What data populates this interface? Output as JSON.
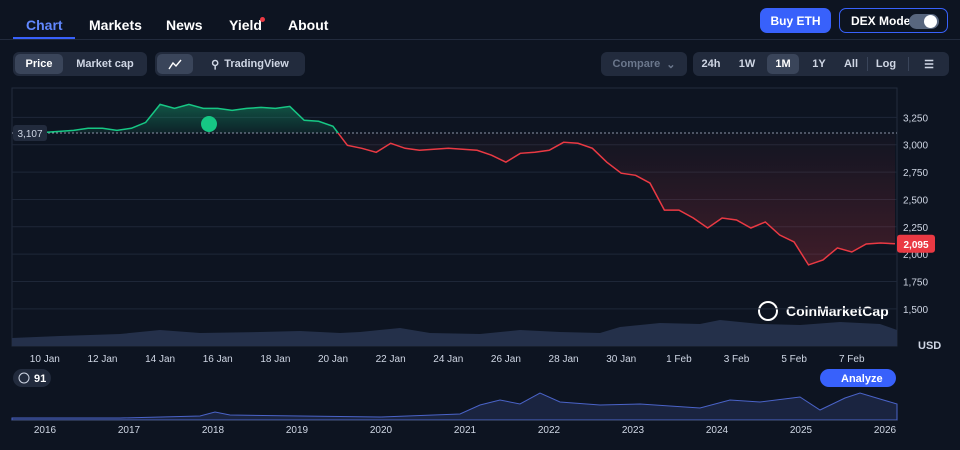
{
  "nav": {
    "tabs": [
      "Chart",
      "Markets",
      "News",
      "Yield",
      "About"
    ],
    "buy": "Buy ETH",
    "dex_mode": "DEX Mode"
  },
  "toolbar": {
    "price": "Price",
    "market_cap": "Market cap",
    "tradingview": "TradingView",
    "compare": "Compare",
    "ranges": [
      "24h",
      "1W",
      "1M",
      "1Y",
      "All"
    ],
    "log": "Log"
  },
  "chart": {
    "type": "line",
    "unit": "USD",
    "watermark": "CoinMarketCap",
    "xlim": [
      0,
      61
    ],
    "xticks": [
      {
        "value": 2,
        "label": "10 Jan"
      },
      {
        "value": 6,
        "label": "12 Jan"
      },
      {
        "value": 10,
        "label": "14 Jan"
      },
      {
        "value": 14,
        "label": "16 Jan"
      },
      {
        "value": 18,
        "label": "18 Jan"
      },
      {
        "value": 22,
        "label": "20 Jan"
      },
      {
        "value": 26,
        "label": "22 Jan"
      },
      {
        "value": 30,
        "label": "24 Jan"
      },
      {
        "value": 34,
        "label": "26 Jan"
      },
      {
        "value": 38,
        "label": "28 Jan"
      },
      {
        "value": 42,
        "label": "30 Jan"
      },
      {
        "value": 46,
        "label": "1 Feb"
      },
      {
        "value": 50,
        "label": "3 Feb"
      },
      {
        "value": 54,
        "label": "5 Feb"
      },
      {
        "value": 58,
        "label": "7 Feb"
      }
    ],
    "ylim": [
      1170,
      3500
    ],
    "yticks": [
      {
        "value": 1500,
        "label": "1,500"
      },
      {
        "value": 1750,
        "label": "1,750"
      },
      {
        "value": 2000,
        "label": "2,000"
      },
      {
        "value": 2250,
        "label": "2,250"
      },
      {
        "value": 2500,
        "label": "2,500"
      },
      {
        "value": 2750,
        "label": "2,750"
      },
      {
        "value": 3000,
        "label": "3,000"
      },
      {
        "value": 3250,
        "label": "3,250"
      }
    ],
    "reference": {
      "value": 3107,
      "label": "3,107"
    },
    "last": {
      "value": 2095,
      "label": "2,095"
    },
    "up_color": "#16c784",
    "down_color": "#ea3943",
    "values": [
      3104,
      3113,
      3113,
      3122,
      3131,
      3150,
      3150,
      3131,
      3150,
      3204,
      3368,
      3332,
      3368,
      3332,
      3332,
      3314,
      3332,
      3341,
      3332,
      3350,
      3223,
      3214,
      3168,
      2995,
      2967,
      2931,
      3013,
      2967,
      2949,
      2958,
      2967,
      2958,
      2949,
      2904,
      2840,
      2922,
      2931,
      2949,
      3022,
      3013,
      2967,
      2840,
      2740,
      2721,
      2649,
      2403,
      2403,
      2330,
      2239,
      2330,
      2312,
      2239,
      2294,
      2175,
      2111,
      1902,
      1948,
      2057,
      2020,
      2093,
      2102,
      2095
    ]
  },
  "navigator": {
    "badge": "91",
    "analyze": "Analyze",
    "years": [
      "2016",
      "2017",
      "2018",
      "2019",
      "2020",
      "2021",
      "2022",
      "2023",
      "2024",
      "2025",
      "2026"
    ]
  }
}
